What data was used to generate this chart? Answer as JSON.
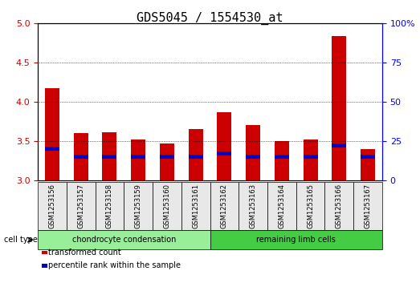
{
  "title": "GDS5045 / 1554530_at",
  "samples": [
    "GSM1253156",
    "GSM1253157",
    "GSM1253158",
    "GSM1253159",
    "GSM1253160",
    "GSM1253161",
    "GSM1253162",
    "GSM1253163",
    "GSM1253164",
    "GSM1253165",
    "GSM1253166",
    "GSM1253167"
  ],
  "transformed_count": [
    4.17,
    3.6,
    3.61,
    3.52,
    3.47,
    3.65,
    3.87,
    3.7,
    3.5,
    3.52,
    4.84,
    3.4
  ],
  "percentile_rank": [
    20,
    15,
    15,
    15,
    15,
    15,
    17,
    15,
    15,
    15,
    22,
    15
  ],
  "ylim_left": [
    3.0,
    5.0
  ],
  "ylim_right": [
    0,
    100
  ],
  "yticks_left": [
    3.0,
    3.5,
    4.0,
    4.5,
    5.0
  ],
  "yticks_right": [
    0,
    25,
    50,
    75,
    100
  ],
  "ytick_labels_right": [
    "0",
    "25",
    "50",
    "75",
    "100%"
  ],
  "grid_values": [
    3.5,
    4.0,
    4.5
  ],
  "bar_width": 0.5,
  "red_color": "#cc0000",
  "blue_color": "#0000cc",
  "cell_type_groups": [
    {
      "label": "chondrocyte condensation",
      "start": 0,
      "end": 6,
      "color": "#99ee99"
    },
    {
      "label": "remaining limb cells",
      "start": 6,
      "end": 12,
      "color": "#44cc44"
    }
  ],
  "cell_type_label": "cell type",
  "legend_items": [
    {
      "label": "transformed count",
      "color": "#cc0000"
    },
    {
      "label": "percentile rank within the sample",
      "color": "#0000cc"
    }
  ],
  "bg_color": "#e8e8e8",
  "plot_bg": "#ffffff",
  "title_fontsize": 11,
  "axis_fontsize": 8,
  "tick_fontsize": 8
}
